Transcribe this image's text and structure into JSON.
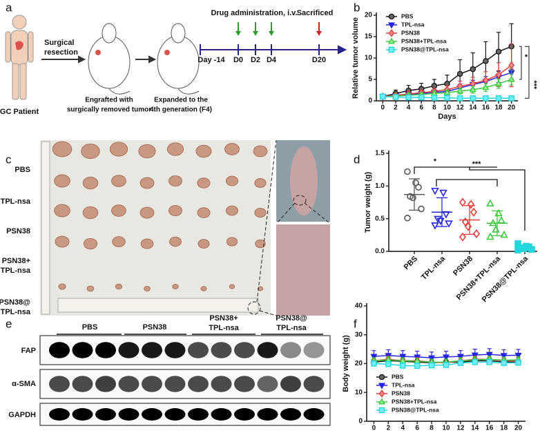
{
  "figure_labels": [
    "a",
    "b",
    "c",
    "d",
    "e",
    "f"
  ],
  "panel_a": {
    "patient": "GC Patient",
    "step1": [
      "Surgical",
      "resection"
    ],
    "engrafted": [
      "Engrafted with",
      "surgically removed tumor"
    ],
    "expanded": [
      "Expanded to the",
      "4th generation (F4)"
    ],
    "drug": "Drug administration, i.v.",
    "sacrificed": "Sacrificed",
    "timeline": [
      "Day -14",
      "D0",
      "D2",
      "D4",
      "D20"
    ]
  },
  "panel_c": {
    "rows": [
      [
        "PBS"
      ],
      [
        "TPL-nsa"
      ],
      [
        "PSN38"
      ],
      [
        "PSN38+",
        "TPL-nsa"
      ],
      [
        "PSN38@",
        "TPL-nsa"
      ]
    ]
  },
  "panel_e": {
    "groups": [
      [
        "PBS"
      ],
      [
        "PSN38"
      ],
      [
        "PSN38+",
        "TPL-nsa"
      ],
      [
        "PSN38@",
        "TPL-nsa"
      ]
    ],
    "proteins": [
      "FAP",
      "α-SMA",
      "GAPDH"
    ]
  },
  "chart_data": [
    {
      "type": "line",
      "y_label": "Relative tumor volume",
      "x_label": "Days",
      "x": [
        0,
        2,
        4,
        6,
        8,
        10,
        12,
        14,
        16,
        18,
        20
      ],
      "xlim": [
        -1,
        21
      ],
      "xticks": [
        0,
        2,
        4,
        6,
        8,
        10,
        12,
        14,
        16,
        18,
        20
      ],
      "ylim": [
        0,
        20
      ],
      "yticks": [
        0,
        5,
        10,
        15,
        20
      ],
      "legend": "upper left",
      "error_direction": "both",
      "series": [
        {
          "name": "PBS",
          "color": "#111111",
          "fill": "#666666",
          "marker": "circle",
          "values": [
            1,
            1.7,
            2.4,
            2.8,
            3.5,
            4,
            6.3,
            7.4,
            9.3,
            11.5,
            12.7
          ],
          "errors": [
            0.4,
            0.8,
            1.2,
            1.3,
            1.5,
            2,
            3.3,
            3.8,
            4.5,
            4.5,
            5.3
          ]
        },
        {
          "name": "TPL-nsa",
          "color": "#2323e0",
          "fill": "#2323e0",
          "marker": "tri-down",
          "values": [
            1,
            1.2,
            1.5,
            1.7,
            2,
            2.2,
            3,
            3.8,
            4.5,
            5.6,
            6.6
          ],
          "errors": [
            0.3,
            0.4,
            0.5,
            0.5,
            0.6,
            0.7,
            0.9,
            1,
            1.2,
            1.3,
            1.5
          ]
        },
        {
          "name": "PSN38",
          "color": "#e03c3c",
          "fill": "#f08a8a",
          "marker": "diamond",
          "values": [
            1,
            1.3,
            1.6,
            1.9,
            2.2,
            2.6,
            3.4,
            4,
            4.8,
            6.1,
            8.3
          ],
          "errors": [
            0.3,
            0.4,
            0.5,
            0.6,
            0.7,
            0.9,
            1.2,
            1.5,
            2,
            2.8,
            5
          ]
        },
        {
          "name": "PSN38+TPL-nsa",
          "color": "#3cc83c",
          "fill": "#8ef08e",
          "marker": "tri-up",
          "values": [
            1,
            1.1,
            1.3,
            1.5,
            1.7,
            1.9,
            2.3,
            2.6,
            3.1,
            4,
            5
          ],
          "errors": [
            0.2,
            0.3,
            0.4,
            0.4,
            0.5,
            0.6,
            0.7,
            0.8,
            0.9,
            1.1,
            1.3
          ]
        },
        {
          "name": "PSN38@TPL-nsa",
          "color": "#22d6e0",
          "fill": "#6ff0f5",
          "marker": "square",
          "values": [
            1,
            0.9,
            0.8,
            0.8,
            0.7,
            0.7,
            0.6,
            0.6,
            0.6,
            0.6,
            0.6
          ],
          "errors": [
            0.2,
            0.2,
            0.2,
            0.2,
            0.2,
            0.2,
            0.2,
            0.2,
            0.2,
            0.2,
            0.2
          ]
        }
      ],
      "annotations": [
        "*",
        "***"
      ]
    },
    {
      "type": "strip",
      "y_label": "Tumor weight (g)",
      "categories": [
        "PBS",
        "TPL-nsa",
        "PSN38",
        "PSN38+TPL-nsa",
        "PSN38@TPL-nsa"
      ],
      "ylim": [
        0,
        1.5
      ],
      "yticks": [
        {
          "value": 0,
          "label": "0.0"
        },
        {
          "value": 0.5,
          "label": "0.5"
        },
        {
          "value": 1,
          "label": "1.0"
        },
        {
          "value": 1.5,
          "label": "1.5"
        }
      ],
      "colors": [
        "#555555",
        "#2323e0",
        "#e03c3c",
        "#3cc83c",
        "#22d6e0"
      ],
      "markers": [
        "circle",
        "tri-down",
        "diamond",
        "tri-up",
        "square"
      ],
      "values": [
        [
          1.22,
          1.05,
          0.98,
          0.84,
          0.82,
          0.65,
          0.51
        ],
        [
          0.93,
          0.9,
          0.57,
          0.5,
          0.47,
          0.43,
          0.4
        ],
        [
          0.75,
          0.72,
          0.6,
          0.45,
          0.38,
          0.27,
          0.22
        ],
        [
          0.73,
          0.58,
          0.47,
          0.43,
          0.33,
          0.25,
          0.22
        ],
        [
          0.12,
          0.08,
          0.07,
          0.05,
          0.04,
          0.03,
          0.02
        ]
      ],
      "means": [
        0.87,
        0.6,
        0.48,
        0.43,
        0.06
      ],
      "sds": [
        0.24,
        0.22,
        0.22,
        0.19,
        0.04
      ],
      "annotations": [
        "*",
        "***"
      ]
    },
    {
      "type": "line",
      "y_label": "Body weight (g)",
      "x_label": "Days",
      "x": [
        0,
        2,
        4,
        6,
        8,
        10,
        12,
        14,
        16,
        18,
        20
      ],
      "xlim": [
        -1,
        21
      ],
      "xticks": [
        0,
        2,
        4,
        6,
        8,
        10,
        12,
        14,
        16,
        18,
        20
      ],
      "ylim": [
        0,
        40
      ],
      "yticks": [
        0,
        10,
        20,
        30,
        40
      ],
      "legend": "lower left",
      "error_direction": "up",
      "series": [
        {
          "name": "PBS",
          "color": "#111111",
          "fill": "#666666",
          "marker": "circle",
          "values": [
            20.5,
            21,
            20.8,
            20.5,
            20.3,
            20.5,
            20.5,
            21,
            21,
            20.6,
            20.5
          ],
          "errors": [
            1,
            1.2,
            1,
            1,
            1,
            1,
            1,
            1,
            1,
            1,
            1
          ]
        },
        {
          "name": "TPL-nsa",
          "color": "#2323e0",
          "fill": "#2323e0",
          "marker": "tri-down",
          "values": [
            22.5,
            22.8,
            22.5,
            22.3,
            22,
            22.3,
            22.5,
            23,
            23.2,
            22.8,
            22.9
          ],
          "errors": [
            2,
            2,
            2,
            2,
            2,
            2,
            2,
            2,
            2,
            2,
            2
          ]
        },
        {
          "name": "PSN38",
          "color": "#e03c3c",
          "fill": "#f08a8a",
          "marker": "diamond",
          "values": [
            21,
            21.5,
            21,
            21,
            20.5,
            20.3,
            21,
            21.5,
            21.5,
            21,
            21
          ],
          "errors": [
            1,
            1,
            1,
            1,
            1,
            1,
            1,
            1,
            1,
            1,
            1
          ]
        },
        {
          "name": "PSN38+TPL-nsa",
          "color": "#3cc83c",
          "fill": "#8ef08e",
          "marker": "tri-up",
          "values": [
            21,
            21.3,
            21,
            20.8,
            20.5,
            20.5,
            21,
            21.3,
            21.5,
            21.2,
            21.3
          ],
          "errors": [
            1,
            1,
            1,
            1,
            1,
            1,
            1,
            1,
            1,
            1,
            1
          ]
        },
        {
          "name": "PSN38@TPL-nsa",
          "color": "#22d6e0",
          "fill": "#6ff0f5",
          "marker": "square",
          "values": [
            20,
            19.8,
            19.3,
            19.2,
            19.4,
            19.5,
            20.2,
            20.5,
            20.5,
            20.2,
            20.3
          ],
          "errors": [
            1,
            1,
            1,
            1,
            1,
            1,
            1,
            1,
            1,
            1,
            1
          ]
        }
      ]
    }
  ]
}
